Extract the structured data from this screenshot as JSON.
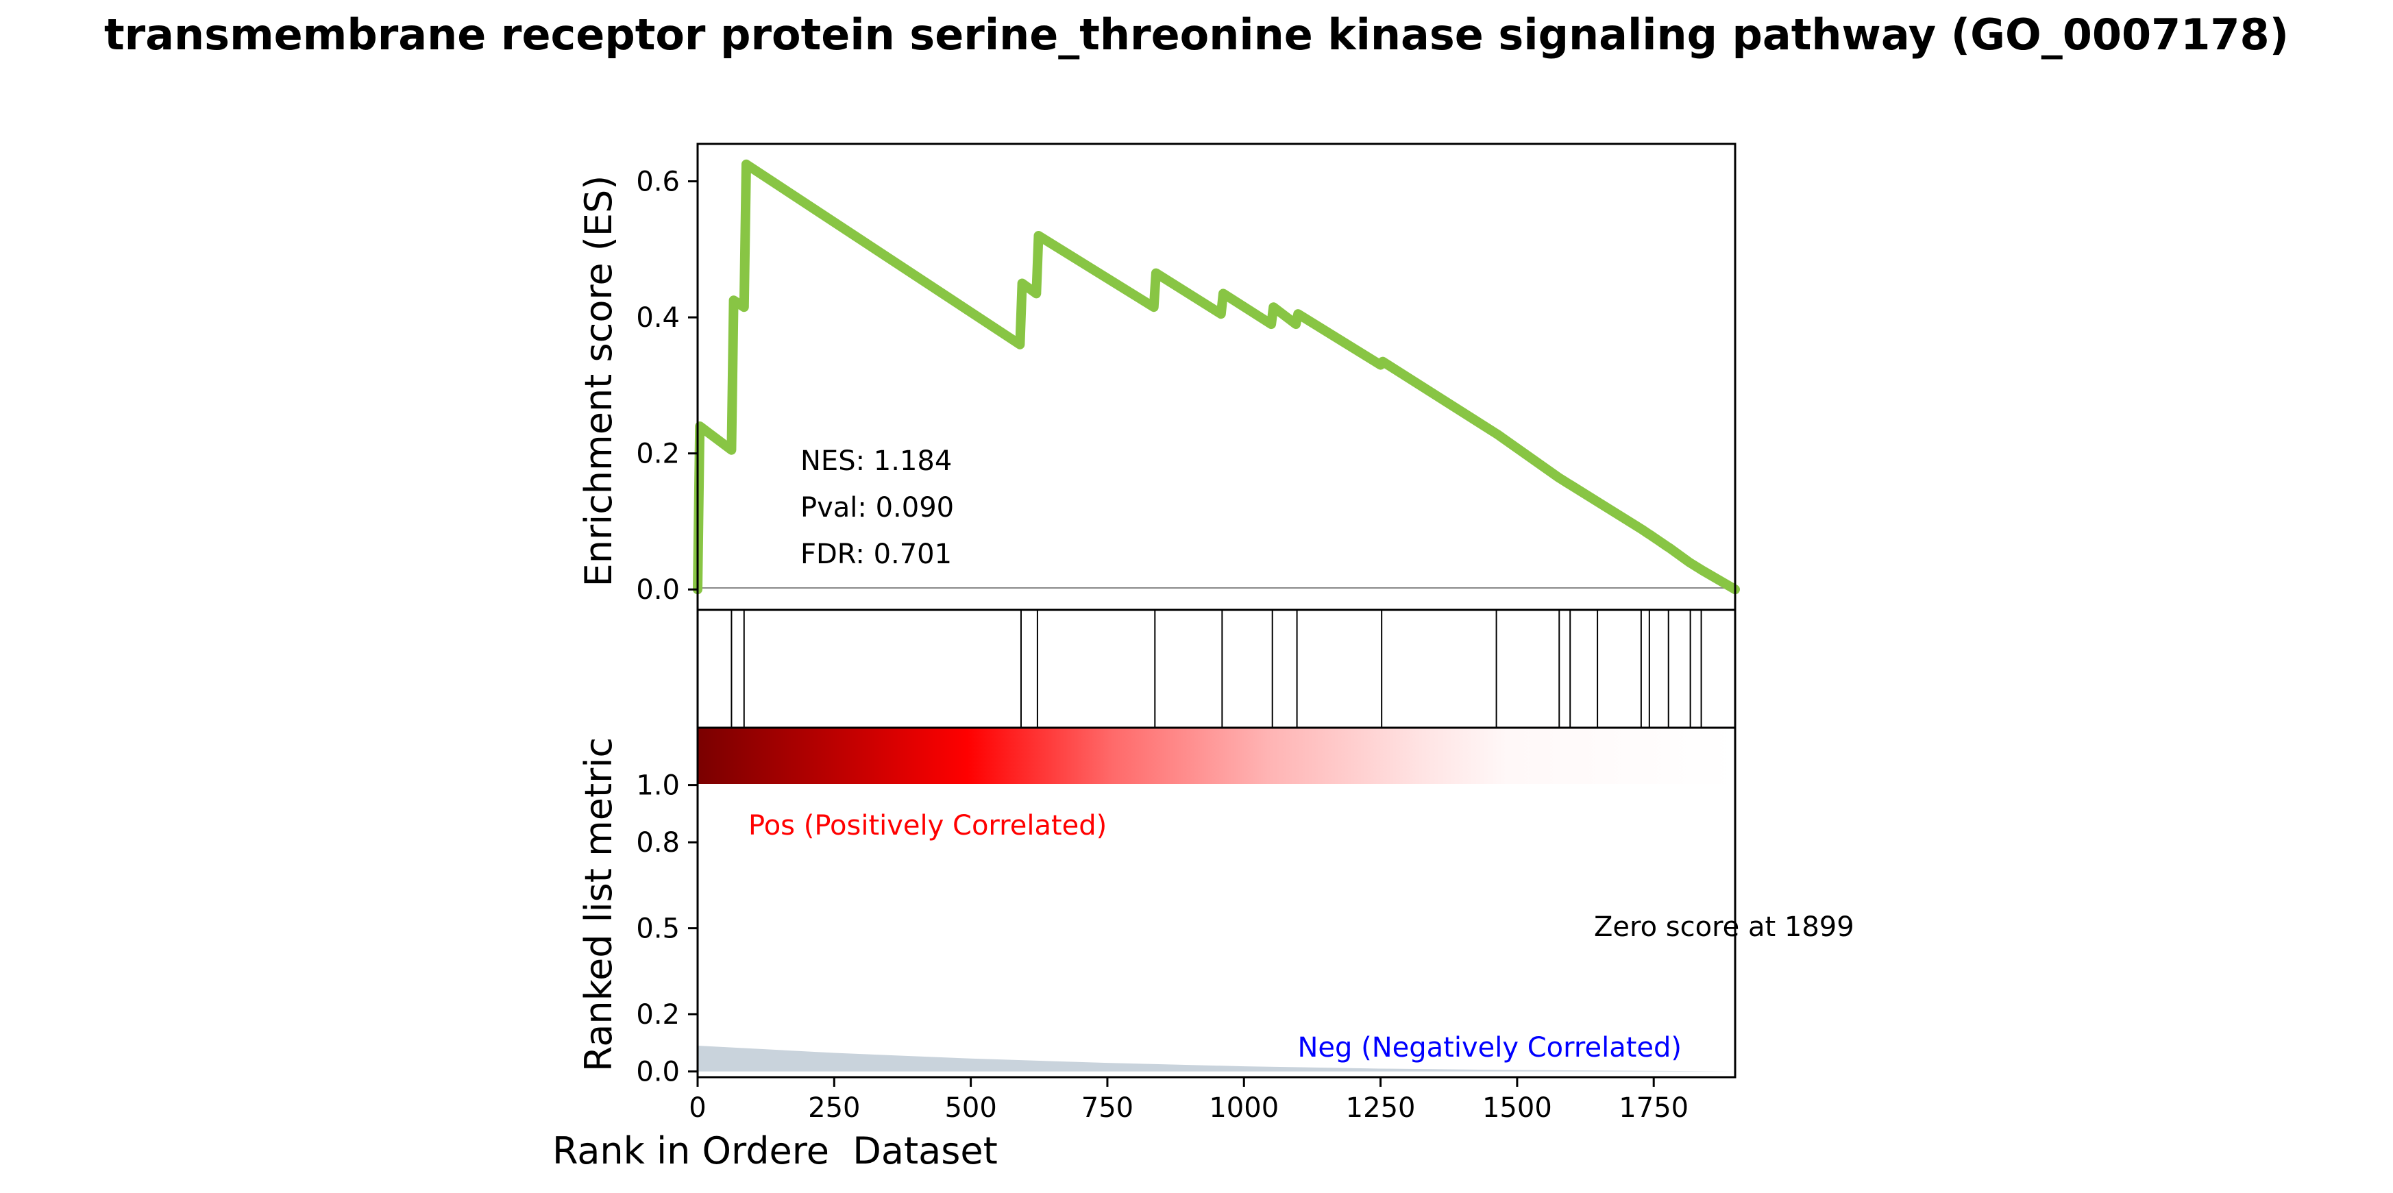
{
  "chart_data": {
    "type": "line",
    "title": "transmembrane receptor protein serine_threonine kinase signaling pathway (GO_0007178)",
    "es_panel": {
      "ylabel": "Enrichment score (ES)",
      "xlim": [
        0,
        1899
      ],
      "ylim": [
        -0.03,
        0.655
      ],
      "yticks": [
        "0.0",
        "0.2",
        "0.4",
        "0.6"
      ],
      "line_color": "#88c544",
      "series": [
        {
          "x": [
            0,
            4,
            62,
            66,
            85,
            89,
            590,
            594,
            620,
            624,
            835,
            839,
            958,
            962,
            1050,
            1054,
            1095,
            1099,
            1250,
            1254,
            1460,
            1464,
            1575,
            1579,
            1595,
            1599,
            1645,
            1649,
            1725,
            1729,
            1740,
            1744,
            1775,
            1779,
            1815,
            1819,
            1835,
            1839,
            1899
          ],
          "y": [
            0.0,
            0.24,
            0.205,
            0.425,
            0.415,
            0.625,
            0.36,
            0.45,
            0.435,
            0.52,
            0.415,
            0.465,
            0.405,
            0.435,
            0.39,
            0.415,
            0.39,
            0.405,
            0.33,
            0.335,
            0.23,
            0.228,
            0.165,
            0.163,
            0.155,
            0.153,
            0.13,
            0.128,
            0.09,
            0.088,
            0.082,
            0.08,
            0.063,
            0.061,
            0.04,
            0.038,
            0.03,
            0.028,
            0.0
          ]
        }
      ],
      "annotations": {
        "nes": "NES: 1.184",
        "pval": "Pval: 0.090",
        "fdr": "FDR: 0.701"
      }
    },
    "hits_panel": {
      "hit_ranks": [
        62,
        85,
        592,
        622,
        837,
        960,
        1052,
        1097,
        1252,
        1462,
        1577,
        1597,
        1647,
        1727,
        1742,
        1777,
        1817,
        1837
      ]
    },
    "ranked_panel": {
      "ylabel": "Ranked list metric",
      "xlabel": "Rank in Ordere  Dataset",
      "xlim": [
        0,
        1899
      ],
      "xticks": [
        "0",
        "250",
        "500",
        "750",
        "1000",
        "1250",
        "1500",
        "1750"
      ],
      "yticks": [
        "0.0",
        "0.2",
        "0.5",
        "0.8",
        "1.0"
      ],
      "ylim": [
        -0.02,
        1.2
      ],
      "metric_x": [
        0,
        250,
        500,
        750,
        1000,
        1250,
        1500,
        1750,
        1899
      ],
      "metric_y": [
        0.09,
        0.065,
        0.045,
        0.03,
        0.018,
        0.01,
        0.005,
        0.002,
        0.0
      ],
      "fill_color": "#c9d3dc",
      "pos_label": "Pos (Positively Correlated)",
      "neg_label": "Neg (Negatively Correlated)",
      "zero_label": "Zero score at 1899",
      "pos_color": "#ff0000",
      "neg_color": "#0000ff"
    }
  }
}
